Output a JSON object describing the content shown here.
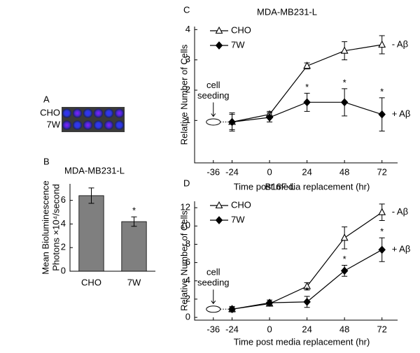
{
  "panel_a": {
    "label": "A",
    "rows": [
      "CHO",
      "7W"
    ]
  },
  "chart_data": [
    {
      "type": "bar",
      "panel_label": "B",
      "title": "MDA-MB231-L",
      "ylabel": [
        "Mean Bioluminescence",
        "Photons ×10⁴/second"
      ],
      "categories": [
        "CHO",
        "7W"
      ],
      "values": [
        6.4,
        4.2
      ],
      "errors": [
        0.65,
        0.4
      ],
      "significance": [
        null,
        "*"
      ],
      "color": "#7f7f7f",
      "ylim": [
        0,
        7.4
      ],
      "yticks": [
        0,
        2,
        4,
        6
      ]
    },
    {
      "type": "line",
      "panel_label": "C",
      "title": "MDA-MB231-L",
      "xlabel": "Time post media replacement (hr)",
      "ylabel": "Relative Number of Cells",
      "x": [
        -24,
        0,
        24,
        48,
        72
      ],
      "xlim": [
        -48,
        82
      ],
      "xticks": [
        -36,
        -24,
        0,
        24,
        48,
        72
      ],
      "ylim": [
        -0.4,
        4.1
      ],
      "yticks": [
        1,
        2,
        3,
        4
      ],
      "legend": "upper left",
      "annotations": [
        {
          "lines": [
            "cell",
            "seeding"
          ],
          "x": -36
        }
      ],
      "series": [
        {
          "name": "CHO",
          "marker": "triangle-open",
          "color": "#000000",
          "values": [
            0.95,
            1.2,
            2.8,
            3.3,
            3.5
          ],
          "errors": [
            0.25,
            0.1,
            0.1,
            0.3,
            0.3
          ],
          "end_label": "- Aβ"
        },
        {
          "name": "7W",
          "marker": "diamond",
          "color": "#000000",
          "values": [
            0.95,
            1.1,
            1.6,
            1.6,
            1.2
          ],
          "errors": [
            0.3,
            0.15,
            0.3,
            0.45,
            0.55
          ],
          "end_label": "+ Aβ",
          "significance": [
            null,
            null,
            "*",
            "*",
            "*"
          ]
        }
      ]
    },
    {
      "type": "line",
      "panel_label": "D",
      "title": "B16F-L",
      "xlabel": "Time post media replacement (hr)",
      "ylabel": "Relative Number of Cells",
      "x": [
        -24,
        0,
        24,
        48,
        72
      ],
      "xlim": [
        -48,
        82
      ],
      "xticks": [
        -36,
        -24,
        0,
        24,
        48,
        72
      ],
      "ylim": [
        -0.3,
        12.7
      ],
      "yticks": [
        0,
        2,
        4,
        6,
        8,
        10,
        12
      ],
      "legend": "upper left",
      "annotations": [
        {
          "lines": [
            "cell",
            "seeding"
          ],
          "x": -36
        }
      ],
      "series": [
        {
          "name": "CHO",
          "marker": "triangle-open",
          "color": "#000000",
          "values": [
            0.9,
            1.5,
            3.4,
            8.7,
            11.5
          ],
          "errors": [
            0.2,
            0.2,
            0.4,
            1.2,
            0.9
          ],
          "end_label": "- Aβ"
        },
        {
          "name": "7W",
          "marker": "diamond",
          "color": "#000000",
          "values": [
            0.9,
            1.6,
            1.7,
            5.1,
            7.4
          ],
          "errors": [
            0.3,
            0.3,
            0.6,
            0.6,
            1.3
          ],
          "end_label": "+ Aβ",
          "significance": [
            null,
            null,
            "*",
            "*",
            "*"
          ]
        }
      ]
    }
  ]
}
